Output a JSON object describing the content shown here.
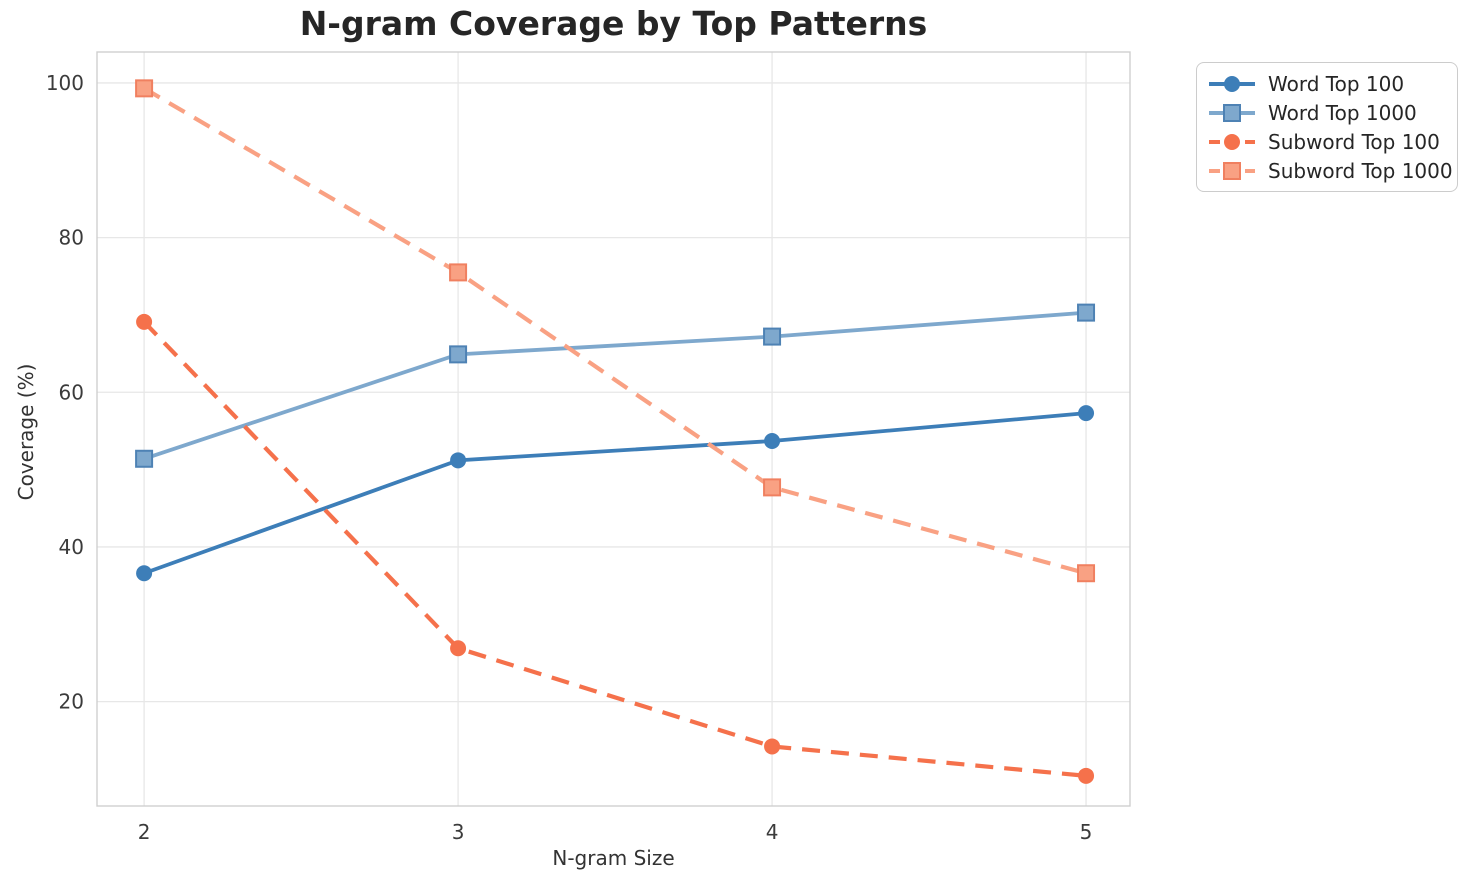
{
  "title": "N-gram Coverage by Top Patterns",
  "chart_data": {
    "type": "line",
    "title": "N-gram Coverage by Top Patterns",
    "xlabel": "N-gram Size",
    "ylabel": "Coverage (%)",
    "x": [
      2,
      3,
      4,
      5
    ],
    "xticks": [
      2,
      3,
      4,
      5
    ],
    "yticks": [
      20,
      40,
      60,
      80,
      100
    ],
    "xlim": [
      1.85,
      5.14
    ],
    "ylim": [
      6.5,
      104
    ],
    "grid": true,
    "legend_position": "outside-upper-right",
    "colors": {
      "grid": "#e7e7e7",
      "spine": "#cfcfcf",
      "tick_text": "#3b3b3b",
      "title_text": "#262626"
    },
    "series": [
      {
        "name": "Word Top 100",
        "values": [
          36.6,
          51.2,
          53.7,
          57.3
        ],
        "color": "#3d7eb8",
        "edge_color": "#3d7eb8",
        "line": "solid",
        "marker": "circle"
      },
      {
        "name": "Word Top 1000",
        "values": [
          51.4,
          64.9,
          67.2,
          70.3
        ],
        "color": "#7ea8cd",
        "edge_color": "#4e82b4",
        "line": "solid",
        "marker": "square"
      },
      {
        "name": "Subword Top 100",
        "values": [
          69.1,
          26.9,
          14.2,
          10.4
        ],
        "color": "#f5714b",
        "edge_color": "#f5714b",
        "line": "dashed",
        "marker": "circle"
      },
      {
        "name": "Subword Top 1000",
        "values": [
          99.3,
          75.5,
          47.7,
          36.6
        ],
        "color": "#f9a183",
        "edge_color": "#f08060",
        "line": "dashed",
        "marker": "square"
      }
    ]
  }
}
